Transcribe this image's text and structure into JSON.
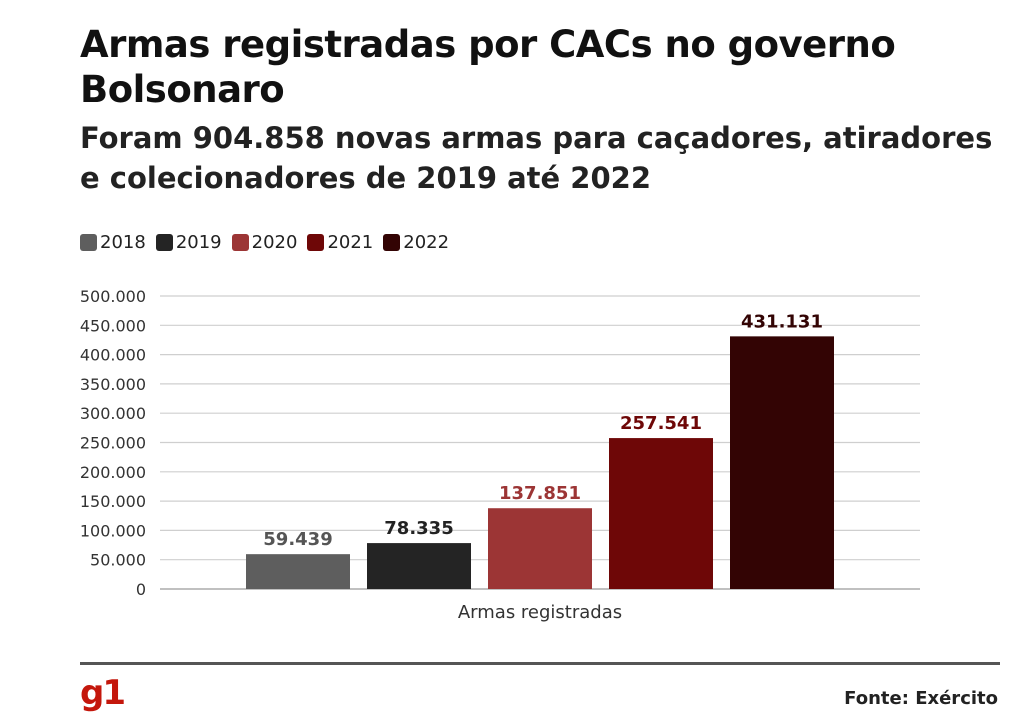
{
  "header": {
    "title": "Armas registradas por CACs no governo Bolsonaro",
    "subtitle": "Foram 904.858 novas armas para caçadores, atiradores e colecionadores de 2019 até 2022"
  },
  "chart_data": {
    "type": "bar",
    "title": "Armas registradas por CACs no governo Bolsonaro",
    "categories": [
      "Armas registradas"
    ],
    "xlabel": "Armas registradas",
    "ylabel": "",
    "ylim": [
      0,
      500000
    ],
    "yticks": [
      {
        "value": 0,
        "label": "0"
      },
      {
        "value": 50000,
        "label": "50.000"
      },
      {
        "value": 100000,
        "label": "100.000"
      },
      {
        "value": 150000,
        "label": "150.000"
      },
      {
        "value": 200000,
        "label": "200.000"
      },
      {
        "value": 250000,
        "label": "250.000"
      },
      {
        "value": 300000,
        "label": "300.000"
      },
      {
        "value": 350000,
        "label": "350.000"
      },
      {
        "value": 400000,
        "label": "400.000"
      },
      {
        "value": 450000,
        "label": "450.000"
      },
      {
        "value": 500000,
        "label": "500.000"
      }
    ],
    "grid": true,
    "legend_position": "top-left",
    "series": [
      {
        "name": "2018",
        "values": [
          59439
        ],
        "label": "59.439",
        "color": "#5e5e5e",
        "label_color": "#555555"
      },
      {
        "name": "2019",
        "values": [
          78335
        ],
        "label": "78.335",
        "color": "#242424",
        "label_color": "#222222"
      },
      {
        "name": "2020",
        "values": [
          137851
        ],
        "label": "137.851",
        "color": "#9c3535",
        "label_color": "#9c3535"
      },
      {
        "name": "2021",
        "values": [
          257541
        ],
        "label": "257.541",
        "color": "#6e0707",
        "label_color": "#6e0707"
      },
      {
        "name": "2022",
        "values": [
          431131
        ],
        "label": "431.131",
        "color": "#330404",
        "label_color": "#330404"
      }
    ]
  },
  "footer": {
    "logo_text": "g1",
    "source": "Fonte: Exército",
    "logo_color": "#c4170c"
  }
}
